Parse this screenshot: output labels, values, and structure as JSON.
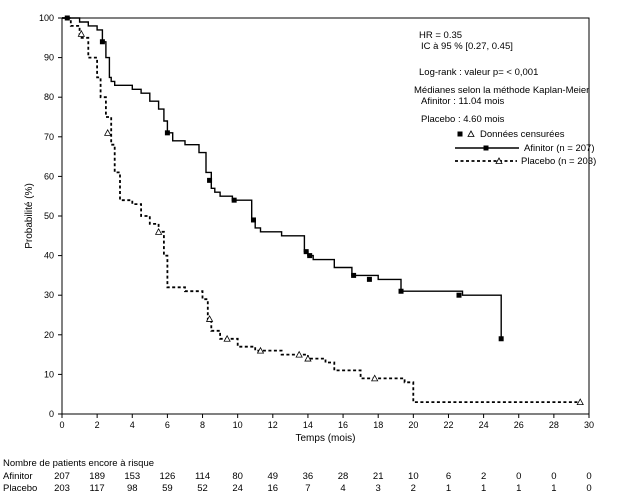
{
  "chart_data": {
    "type": "line",
    "title": "",
    "xlabel": "Temps (mois)",
    "ylabel": "Probabilité (%)",
    "xlim": [
      0,
      30
    ],
    "ylim": [
      0,
      100
    ],
    "xticks": [
      "0",
      "2",
      "4",
      "6",
      "8",
      "10",
      "12",
      "14",
      "16",
      "18",
      "20",
      "22",
      "24",
      "26",
      "28",
      "30"
    ],
    "yticks": [
      "0",
      "10",
      "20",
      "30",
      "40",
      "50",
      "60",
      "70",
      "80",
      "90",
      "100"
    ],
    "grid": false,
    "annotations": [
      "HR = 0.35",
      "IC à 95 % [0.27, 0.45]",
      "Log-rank : valeur p= < 0,001",
      "Médianes selon la méthode Kaplan-Meier",
      "Afinitor : 11.04 mois",
      "Placebo : 4.60 mois"
    ],
    "legend": {
      "position": "top-right",
      "censored_label": "Données censurées",
      "entries": [
        "Afinitor (n = 207)",
        "Placebo (n = 203)"
      ]
    },
    "series": [
      {
        "name": "Afinitor (n = 207)",
        "style": "solid",
        "marker": "square",
        "color": "#000000",
        "x": [
          0,
          1.0,
          1.5,
          2.0,
          2.3,
          2.5,
          2.7,
          2.8,
          3.0,
          4.0,
          4.5,
          5.0,
          5.5,
          5.8,
          6.0,
          6.3,
          7.0,
          7.8,
          8.2,
          8.5,
          8.7,
          9.0,
          9.7,
          10.8,
          11.0,
          11.3,
          12.5,
          13.8,
          14.0,
          14.3,
          15.5,
          16.5,
          18.0,
          19.3,
          22.8,
          25.0
        ],
        "y": [
          100,
          99,
          98,
          97,
          94,
          90,
          85,
          84,
          83,
          82,
          81,
          79,
          77,
          74,
          71,
          69,
          68,
          66,
          61,
          57,
          56,
          55,
          54,
          49,
          47,
          46,
          45,
          41,
          40,
          39,
          37,
          35,
          34,
          31,
          30,
          19
        ]
      },
      {
        "name": "Placebo (n = 203)",
        "style": "dashed",
        "marker": "triangle",
        "color": "#000000",
        "x": [
          0,
          0.5,
          1.0,
          1.5,
          2.0,
          2.2,
          2.5,
          2.8,
          3.0,
          3.3,
          4.0,
          4.5,
          5.0,
          5.5,
          5.8,
          6.0,
          7.0,
          8.0,
          8.3,
          8.5,
          9.0,
          10.0,
          11.0,
          12.5,
          14.0,
          15.0,
          15.5,
          17.0,
          19.5,
          20.0,
          29.5
        ],
        "y": [
          100,
          98,
          95,
          90,
          85,
          80,
          75,
          68,
          61,
          54,
          53,
          50,
          48,
          46,
          40,
          32,
          31,
          29,
          24,
          21,
          19,
          17,
          16,
          15,
          14,
          13,
          11,
          9,
          8,
          3,
          3
        ]
      }
    ],
    "censored_afinitor": [
      [
        0.3,
        100
      ],
      [
        2.3,
        94
      ],
      [
        6.0,
        71
      ],
      [
        8.4,
        59
      ],
      [
        9.8,
        54
      ],
      [
        10.9,
        49
      ],
      [
        13.9,
        41
      ],
      [
        14.1,
        40
      ],
      [
        16.6,
        35
      ],
      [
        17.5,
        34
      ],
      [
        19.3,
        31
      ],
      [
        22.6,
        30
      ],
      [
        25.0,
        19
      ]
    ],
    "censored_placebo": [
      [
        1.1,
        96
      ],
      [
        2.6,
        71
      ],
      [
        5.5,
        46
      ],
      [
        8.4,
        24
      ],
      [
        9.4,
        19
      ],
      [
        11.3,
        16
      ],
      [
        13.5,
        15
      ],
      [
        14.0,
        14
      ],
      [
        17.8,
        9
      ],
      [
        29.5,
        3
      ]
    ],
    "risk_table": {
      "title": "Nombre de patients encore à risque",
      "rows": [
        {
          "label": "Afinitor",
          "values": [
            "207",
            "189",
            "153",
            "126",
            "114",
            "80",
            "49",
            "36",
            "28",
            "21",
            "10",
            "6",
            "2",
            "0",
            "0",
            "0"
          ]
        },
        {
          "label": "Placebo",
          "values": [
            "203",
            "117",
            "98",
            "59",
            "52",
            "24",
            "16",
            "7",
            "4",
            "3",
            "2",
            "1",
            "1",
            "1",
            "1",
            "0"
          ]
        }
      ]
    }
  }
}
